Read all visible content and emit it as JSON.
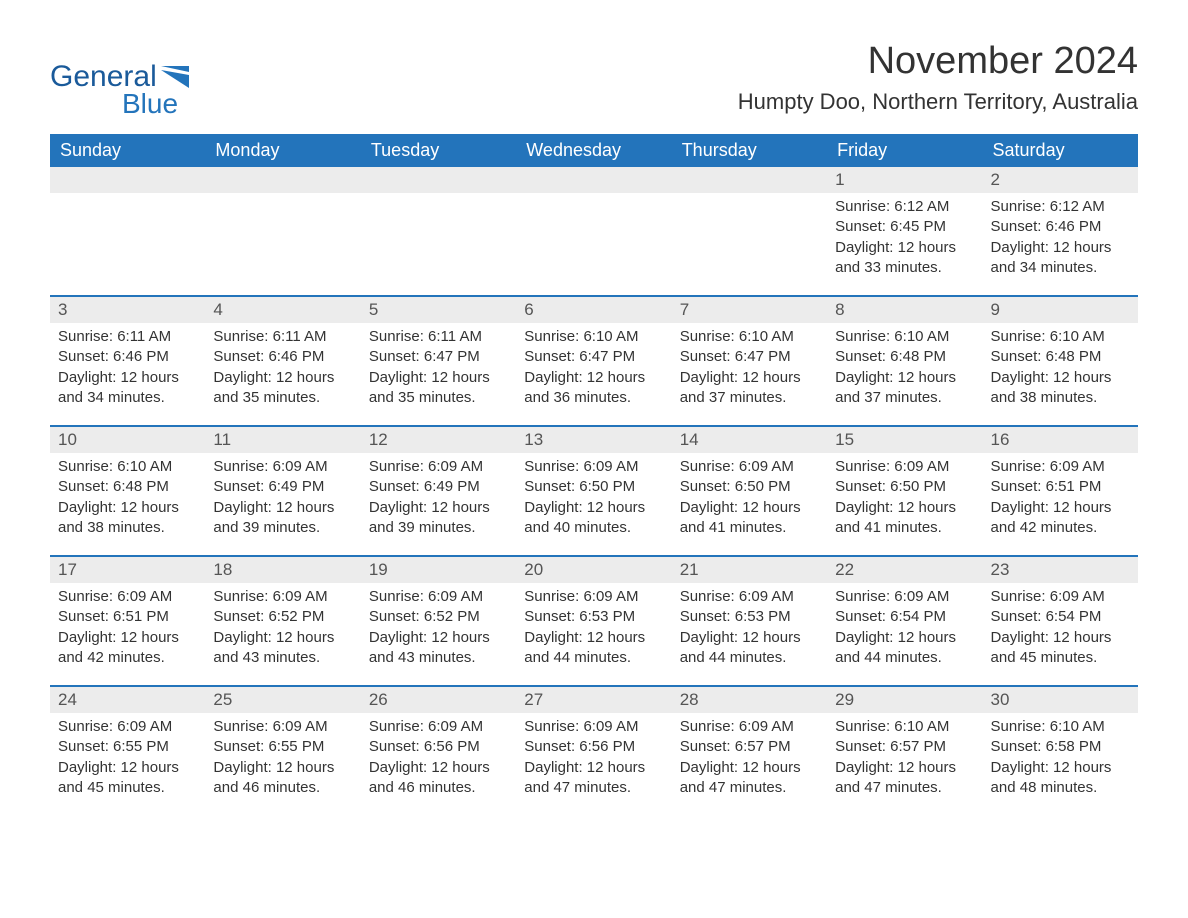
{
  "logo": {
    "text1": "General",
    "text2": "Blue"
  },
  "title": "November 2024",
  "location": "Humpty Doo, Northern Territory, Australia",
  "colors": {
    "header_bg": "#2374bb",
    "header_text": "#ffffff",
    "daynum_bg": "#ececec",
    "border": "#2374bb",
    "text": "#333333"
  },
  "day_names": [
    "Sunday",
    "Monday",
    "Tuesday",
    "Wednesday",
    "Thursday",
    "Friday",
    "Saturday"
  ],
  "weeks": [
    [
      {
        "empty": true
      },
      {
        "empty": true
      },
      {
        "empty": true
      },
      {
        "empty": true
      },
      {
        "empty": true
      },
      {
        "day": "1",
        "sunrise": "Sunrise: 6:12 AM",
        "sunset": "Sunset: 6:45 PM",
        "daylight": "Daylight: 12 hours and 33 minutes."
      },
      {
        "day": "2",
        "sunrise": "Sunrise: 6:12 AM",
        "sunset": "Sunset: 6:46 PM",
        "daylight": "Daylight: 12 hours and 34 minutes."
      }
    ],
    [
      {
        "day": "3",
        "sunrise": "Sunrise: 6:11 AM",
        "sunset": "Sunset: 6:46 PM",
        "daylight": "Daylight: 12 hours and 34 minutes."
      },
      {
        "day": "4",
        "sunrise": "Sunrise: 6:11 AM",
        "sunset": "Sunset: 6:46 PM",
        "daylight": "Daylight: 12 hours and 35 minutes."
      },
      {
        "day": "5",
        "sunrise": "Sunrise: 6:11 AM",
        "sunset": "Sunset: 6:47 PM",
        "daylight": "Daylight: 12 hours and 35 minutes."
      },
      {
        "day": "6",
        "sunrise": "Sunrise: 6:10 AM",
        "sunset": "Sunset: 6:47 PM",
        "daylight": "Daylight: 12 hours and 36 minutes."
      },
      {
        "day": "7",
        "sunrise": "Sunrise: 6:10 AM",
        "sunset": "Sunset: 6:47 PM",
        "daylight": "Daylight: 12 hours and 37 minutes."
      },
      {
        "day": "8",
        "sunrise": "Sunrise: 6:10 AM",
        "sunset": "Sunset: 6:48 PM",
        "daylight": "Daylight: 12 hours and 37 minutes."
      },
      {
        "day": "9",
        "sunrise": "Sunrise: 6:10 AM",
        "sunset": "Sunset: 6:48 PM",
        "daylight": "Daylight: 12 hours and 38 minutes."
      }
    ],
    [
      {
        "day": "10",
        "sunrise": "Sunrise: 6:10 AM",
        "sunset": "Sunset: 6:48 PM",
        "daylight": "Daylight: 12 hours and 38 minutes."
      },
      {
        "day": "11",
        "sunrise": "Sunrise: 6:09 AM",
        "sunset": "Sunset: 6:49 PM",
        "daylight": "Daylight: 12 hours and 39 minutes."
      },
      {
        "day": "12",
        "sunrise": "Sunrise: 6:09 AM",
        "sunset": "Sunset: 6:49 PM",
        "daylight": "Daylight: 12 hours and 39 minutes."
      },
      {
        "day": "13",
        "sunrise": "Sunrise: 6:09 AM",
        "sunset": "Sunset: 6:50 PM",
        "daylight": "Daylight: 12 hours and 40 minutes."
      },
      {
        "day": "14",
        "sunrise": "Sunrise: 6:09 AM",
        "sunset": "Sunset: 6:50 PM",
        "daylight": "Daylight: 12 hours and 41 minutes."
      },
      {
        "day": "15",
        "sunrise": "Sunrise: 6:09 AM",
        "sunset": "Sunset: 6:50 PM",
        "daylight": "Daylight: 12 hours and 41 minutes."
      },
      {
        "day": "16",
        "sunrise": "Sunrise: 6:09 AM",
        "sunset": "Sunset: 6:51 PM",
        "daylight": "Daylight: 12 hours and 42 minutes."
      }
    ],
    [
      {
        "day": "17",
        "sunrise": "Sunrise: 6:09 AM",
        "sunset": "Sunset: 6:51 PM",
        "daylight": "Daylight: 12 hours and 42 minutes."
      },
      {
        "day": "18",
        "sunrise": "Sunrise: 6:09 AM",
        "sunset": "Sunset: 6:52 PM",
        "daylight": "Daylight: 12 hours and 43 minutes."
      },
      {
        "day": "19",
        "sunrise": "Sunrise: 6:09 AM",
        "sunset": "Sunset: 6:52 PM",
        "daylight": "Daylight: 12 hours and 43 minutes."
      },
      {
        "day": "20",
        "sunrise": "Sunrise: 6:09 AM",
        "sunset": "Sunset: 6:53 PM",
        "daylight": "Daylight: 12 hours and 44 minutes."
      },
      {
        "day": "21",
        "sunrise": "Sunrise: 6:09 AM",
        "sunset": "Sunset: 6:53 PM",
        "daylight": "Daylight: 12 hours and 44 minutes."
      },
      {
        "day": "22",
        "sunrise": "Sunrise: 6:09 AM",
        "sunset": "Sunset: 6:54 PM",
        "daylight": "Daylight: 12 hours and 44 minutes."
      },
      {
        "day": "23",
        "sunrise": "Sunrise: 6:09 AM",
        "sunset": "Sunset: 6:54 PM",
        "daylight": "Daylight: 12 hours and 45 minutes."
      }
    ],
    [
      {
        "day": "24",
        "sunrise": "Sunrise: 6:09 AM",
        "sunset": "Sunset: 6:55 PM",
        "daylight": "Daylight: 12 hours and 45 minutes."
      },
      {
        "day": "25",
        "sunrise": "Sunrise: 6:09 AM",
        "sunset": "Sunset: 6:55 PM",
        "daylight": "Daylight: 12 hours and 46 minutes."
      },
      {
        "day": "26",
        "sunrise": "Sunrise: 6:09 AM",
        "sunset": "Sunset: 6:56 PM",
        "daylight": "Daylight: 12 hours and 46 minutes."
      },
      {
        "day": "27",
        "sunrise": "Sunrise: 6:09 AM",
        "sunset": "Sunset: 6:56 PM",
        "daylight": "Daylight: 12 hours and 47 minutes."
      },
      {
        "day": "28",
        "sunrise": "Sunrise: 6:09 AM",
        "sunset": "Sunset: 6:57 PM",
        "daylight": "Daylight: 12 hours and 47 minutes."
      },
      {
        "day": "29",
        "sunrise": "Sunrise: 6:10 AM",
        "sunset": "Sunset: 6:57 PM",
        "daylight": "Daylight: 12 hours and 47 minutes."
      },
      {
        "day": "30",
        "sunrise": "Sunrise: 6:10 AM",
        "sunset": "Sunset: 6:58 PM",
        "daylight": "Daylight: 12 hours and 48 minutes."
      }
    ]
  ]
}
